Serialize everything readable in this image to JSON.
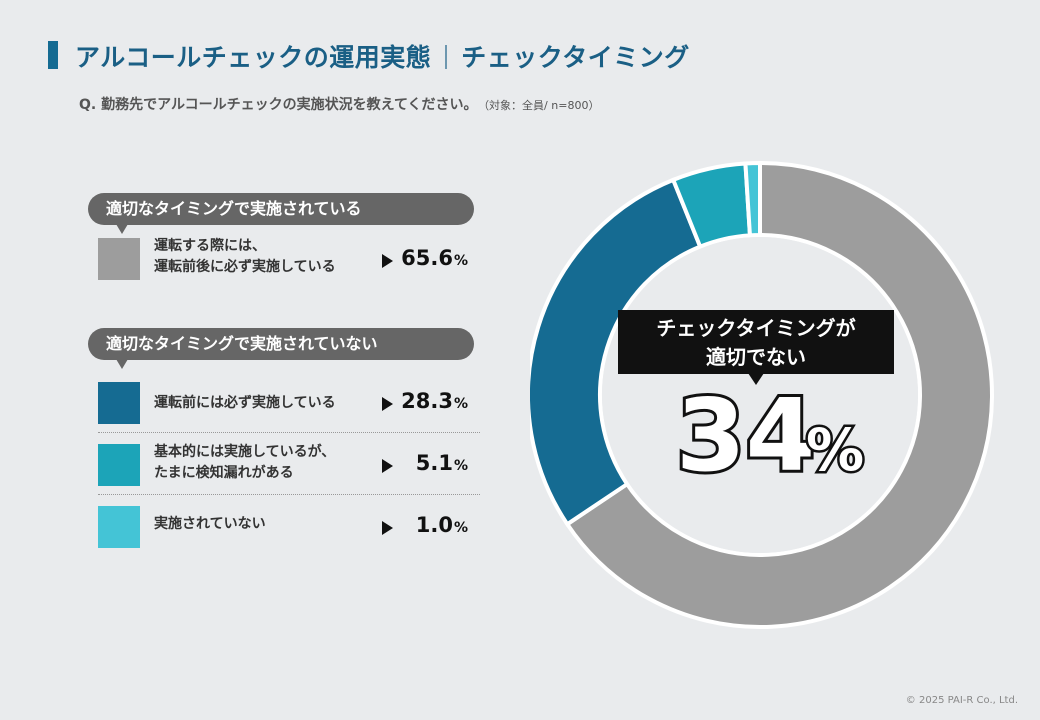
{
  "header": {
    "title_main": "アルコールチェックの運用実態",
    "title_sub": "チェックタイミング"
  },
  "question": {
    "text": "Q. 勤務先でアルコールチェックの実施状況を教えてください。",
    "note": "（対象：全員/ n=800）"
  },
  "groups": [
    {
      "label": "適切なタイミングで実施されている"
    },
    {
      "label": "適切なタイミングで実施されていない"
    }
  ],
  "items": [
    {
      "label": "運転する際には、\n運転前後に必ず実施している",
      "pct": "65.6",
      "unit": "%",
      "color": "#9d9d9d"
    },
    {
      "label": "運転前には必ず実施している",
      "pct": "28.3",
      "unit": "%",
      "color": "#156b92"
    },
    {
      "label": "基本的には実施しているが、\nたまに検知漏れがある",
      "pct": "5.1",
      "unit": "%",
      "color": "#1ca4b8"
    },
    {
      "label": "実施されていない",
      "pct": "1.0",
      "unit": "%",
      "color": "#44c4d6"
    }
  ],
  "callout": {
    "line1": "チェックタイミングが",
    "line2": "適切でない",
    "value": "34",
    "unit": "%"
  },
  "chart_data": {
    "type": "pie",
    "categories": [
      "運転する際には、運転前後に必ず実施している",
      "運転前には必ず実施している",
      "基本的には実施しているが、たまに検知漏れがある",
      "実施されていない"
    ],
    "values": [
      65.6,
      28.3,
      5.1,
      1.0
    ],
    "colors": [
      "#9d9d9d",
      "#156b92",
      "#1ca4b8",
      "#44c4d6"
    ],
    "donut": true
  },
  "copyright": "© 2025 PAI-R Co., Ltd."
}
